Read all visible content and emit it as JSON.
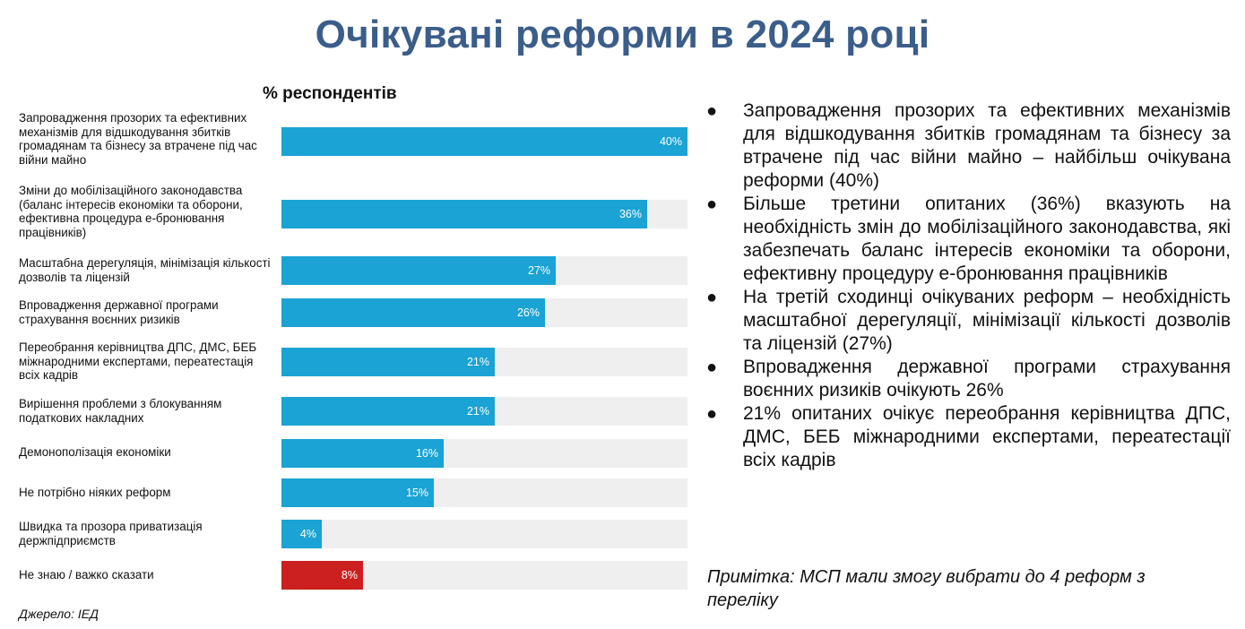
{
  "title": "Очікувані реформи в 2024 році",
  "chart_data": {
    "type": "bar",
    "orientation": "horizontal",
    "title": "% респондентів",
    "xlim": [
      0,
      40
    ],
    "categories": [
      "Запровадження прозорих та ефективних механізмів для відшкодування збитків громадянам та бізнесу за втрачене під час війни майно",
      "Зміни до мобілізаційного законодавства (баланс інтересів економіки та оборони, ефективна процедура е-бронювання працівників)",
      "Масштабна дерегуляція, мінімізація кількості дозволів та ліцензій",
      "Впровадження державної програми страхування воєнних ризиків",
      "Переобрання керівництва ДПС, ДМС, БЕБ міжнародними експертами, переатестація всіх кадрів",
      "Вирішення проблеми з блокуванням податкових накладних",
      "Демонополізація економіки",
      "Не потрібно ніяких реформ",
      "Швидка та прозора приватизація держпідприємств",
      "Не знаю / важко сказати"
    ],
    "values": [
      40,
      36,
      27,
      26,
      21,
      21,
      16,
      15,
      4,
      8
    ],
    "value_labels": [
      "40%",
      "36%",
      "27%",
      "26%",
      "21%",
      "21%",
      "16%",
      "15%",
      "4%",
      "8%"
    ],
    "bar_colors": [
      "#1aa3d4",
      "#1aa3d4",
      "#1aa3d4",
      "#1aa3d4",
      "#1aa3d4",
      "#1aa3d4",
      "#1aa3d4",
      "#1aa3d4",
      "#1aa3d4",
      "#cc1f1f"
    ]
  },
  "source": "Джерело: ІЕД",
  "bullets": [
    "Запровадження прозорих та ефективних механізмів для відшкодування збитків громадянам та бізнесу за втрачене під час війни майно – найбільш очікувана реформи (40%)",
    "Більше третини опитаних (36%) вказують на необхідність змін до мобілізаційного законодавства, які забезпечать баланс інтересів економіки та оборони, ефективну процедуру е-бронювання працівників",
    "На третій сходинці очікуваних реформ – необхідність масштабної дерегуляції, мінімізації кількості дозволів та ліцензій (27%)",
    "Впровадження державної програми страхування воєнних ризиків очікують 26%",
    "21% опитаних очікує переобрання керівництва ДПС, ДМС, БЕБ міжнародними експертами, переатестації всіх кадрів"
  ],
  "note": "Примітка: МСП мали змогу вибрати до 4 реформ з переліку"
}
